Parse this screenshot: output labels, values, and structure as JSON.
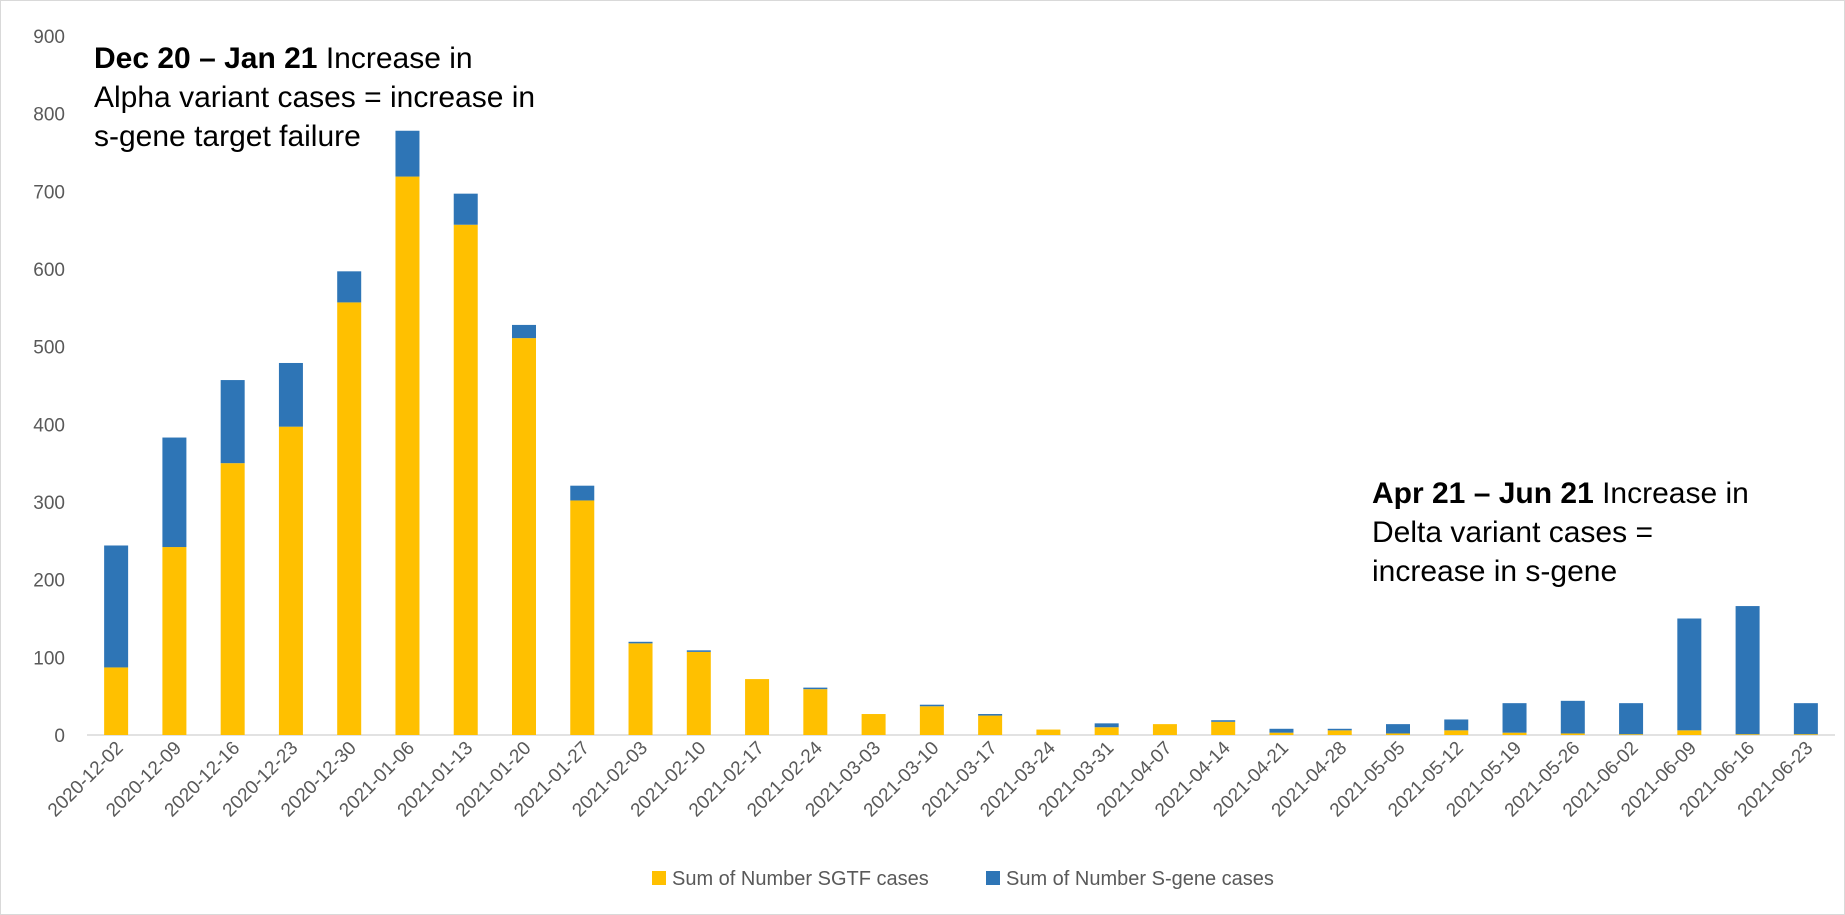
{
  "chart_data": {
    "type": "bar",
    "stacked": true,
    "title": "",
    "xlabel": "",
    "ylabel": "",
    "ylim": [
      0,
      900
    ],
    "y_ticks": [
      0,
      100,
      200,
      300,
      400,
      500,
      600,
      700,
      800,
      900
    ],
    "grid": false,
    "legend_position": "bottom",
    "categories": [
      "2020-12-02",
      "2020-12-09",
      "2020-12-16",
      "2020-12-23",
      "2020-12-30",
      "2021-01-06",
      "2021-01-13",
      "2021-01-20",
      "2021-01-27",
      "2021-02-03",
      "2021-02-10",
      "2021-02-17",
      "2021-02-24",
      "2021-03-03",
      "2021-03-10",
      "2021-03-17",
      "2021-03-24",
      "2021-03-31",
      "2021-04-07",
      "2021-04-14",
      "2021-04-21",
      "2021-04-28",
      "2021-05-05",
      "2021-05-12",
      "2021-05-19",
      "2021-05-26",
      "2021-06-02",
      "2021-06-09",
      "2021-06-16",
      "2021-06-23"
    ],
    "series": [
      {
        "name": "Sum of Number SGTF cases",
        "color": "#FFC000",
        "values": [
          87,
          242,
          350,
          397,
          557,
          719,
          657,
          511,
          302,
          118,
          107,
          72,
          59,
          27,
          37,
          25,
          7,
          10,
          14,
          17,
          3,
          6,
          2,
          6,
          3,
          2,
          1,
          6,
          1,
          1
        ]
      },
      {
        "name": "Sum of Number S-gene cases",
        "color": "#2E75B6",
        "values": [
          157,
          141,
          107,
          82,
          40,
          59,
          40,
          17,
          19,
          2,
          2,
          0,
          2,
          0,
          2,
          2,
          0,
          5,
          0,
          2,
          5,
          2,
          12,
          14,
          38,
          42,
          40,
          144,
          165,
          40
        ]
      }
    ],
    "annotations": [
      {
        "bold": "Dec 20 – Jan 21",
        "text_first": " Increase in",
        "lines": [
          "Alpha variant cases = increase in",
          "s-gene target failure"
        ]
      },
      {
        "bold": "Apr 21 – Jun 21",
        "text_first": " Increase in",
        "lines": [
          "Delta variant cases =",
          "increase in s-gene"
        ]
      }
    ]
  }
}
